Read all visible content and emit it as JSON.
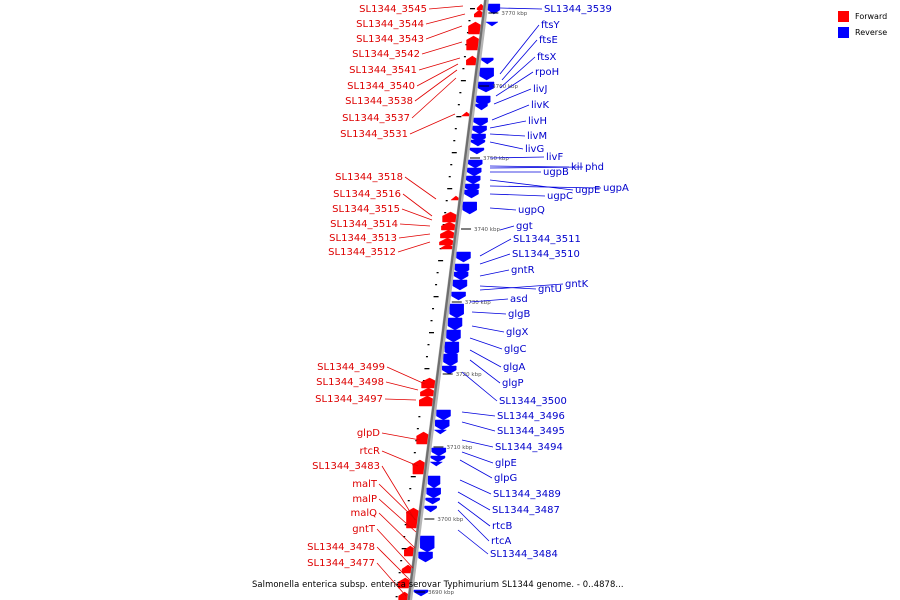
{
  "legend": {
    "forward_label": "Forward",
    "reverse_label": "Reverse",
    "forward_color": "#ff0000",
    "reverse_color": "#0000ff"
  },
  "caption": "Salmonella enterica subsp. enterica serovar Typhimurium SL1344 genome. - 0..4878...",
  "ticks": [
    {
      "label": "3770 kbp"
    },
    {
      "label": "3760 kbp"
    },
    {
      "label": "3750 kbp"
    },
    {
      "label": "3740 kbp"
    },
    {
      "label": "3730 kbp"
    },
    {
      "label": "3720 kbp"
    },
    {
      "label": "3710 kbp"
    },
    {
      "label": "3700 kbp"
    },
    {
      "label": "3690 kbp"
    }
  ],
  "forward_genes": [
    "SL1344_3545",
    "SL1344_3544",
    "SL1344_3543",
    "SL1344_3542",
    "SL1344_3541",
    "SL1344_3540",
    "SL1344_3538",
    "SL1344_3537",
    "SL1344_3531",
    "SL1344_3518",
    "SL1344_3516",
    "SL1344_3515",
    "SL1344_3514",
    "SL1344_3513",
    "SL1344_3512",
    "SL1344_3499",
    "SL1344_3498",
    "SL1344_3497",
    "glpD",
    "rtcR",
    "SL1344_3483",
    "malT",
    "malP",
    "malQ",
    "gntT",
    "SL1344_3478",
    "SL1344_3477"
  ],
  "reverse_genes": [
    "SL1344_3539",
    "ftsY",
    "ftsE",
    "ftsX",
    "rpoH",
    "livJ",
    "livK",
    "livH",
    "livM",
    "livG",
    "livF",
    "kil",
    "phd",
    "ugpB",
    "ugpE",
    "ugpA",
    "ugpC",
    "ugpQ",
    "ggt",
    "SL1344_3511",
    "SL1344_3510",
    "gntR",
    "gntU",
    "gntK",
    "asd",
    "glgB",
    "glgX",
    "glgC",
    "glgA",
    "glgP",
    "SL1344_3500",
    "SL1344_3496",
    "SL1344_3495",
    "SL1344_3494",
    "glpE",
    "glpG",
    "SL1344_3489",
    "SL1344_3487",
    "rtcB",
    "rtcA",
    "SL1344_3484"
  ]
}
